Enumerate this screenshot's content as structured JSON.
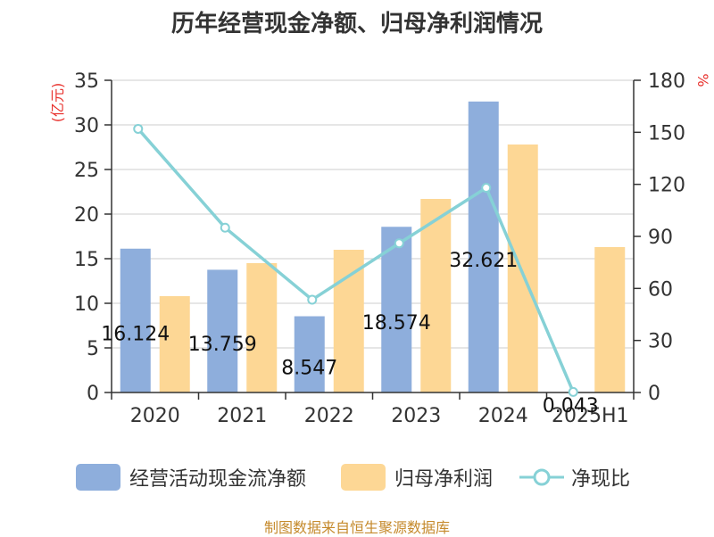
{
  "chart_data": {
    "type": "bar",
    "title": "历年经营现金净额、归母净利润情况",
    "categories": [
      "2020",
      "2021",
      "2022",
      "2023",
      "2024",
      "2025H1"
    ],
    "left_axis": {
      "unit": "(亿元)",
      "ylim": [
        0,
        35
      ],
      "ticks": [
        0,
        5,
        10,
        15,
        20,
        25,
        30,
        35
      ]
    },
    "right_axis": {
      "unit": "%",
      "ylim": [
        0,
        180
      ],
      "ticks": [
        0,
        30,
        60,
        90,
        120,
        150,
        180
      ]
    },
    "series": [
      {
        "name": "经营活动现金流净额",
        "kind": "bar",
        "axis": "left",
        "color": "#8eaedc",
        "values": [
          16.124,
          13.759,
          8.547,
          18.574,
          32.621,
          0.043
        ],
        "labels": [
          "16.124",
          "13.759",
          "8.547",
          "18.574",
          "32.621",
          "0.043"
        ]
      },
      {
        "name": "归母净利润",
        "kind": "bar",
        "axis": "left",
        "color": "#fdd795",
        "values": [
          10.8,
          14.5,
          16.0,
          21.7,
          27.8,
          16.3
        ]
      },
      {
        "name": "净现比",
        "kind": "line",
        "axis": "right",
        "color": "#86d1d6",
        "values": [
          152,
          95,
          53.5,
          86,
          118,
          0.3
        ]
      }
    ],
    "grid": true,
    "legend_position": "bottom"
  },
  "source": "制图数据来自恒生聚源数据库"
}
